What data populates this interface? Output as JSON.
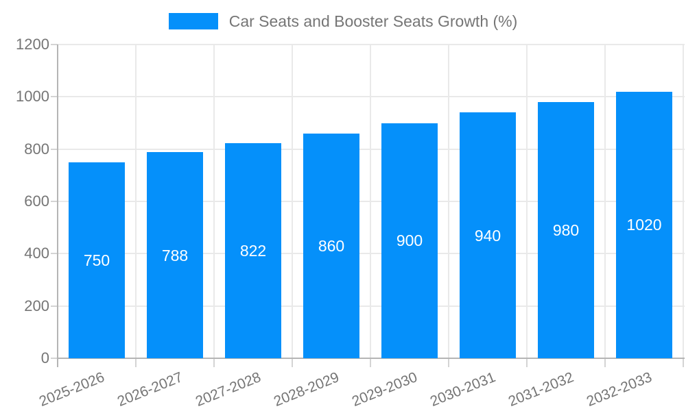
{
  "legend": {
    "label": "Car Seats and Booster Seats Growth (%)"
  },
  "chart_data": {
    "type": "bar",
    "title": "Car Seats and Booster Seats Growth (%)",
    "categories": [
      "2025-2026",
      "2026-2027",
      "2027-2028",
      "2028-2029",
      "2029-2030",
      "2030-2031",
      "2031-2032",
      "2032-2033"
    ],
    "values": [
      750,
      788,
      822,
      860,
      900,
      940,
      980,
      1020
    ],
    "xlabel": "",
    "ylabel": "",
    "ylim": [
      0,
      1200
    ],
    "yticks": [
      0,
      200,
      400,
      600,
      800,
      1000,
      1200
    ],
    "grid": true,
    "legend_position": "top",
    "bar_color": "#0590fa",
    "value_label_color": "#ffffff",
    "axis_text_color": "#757575",
    "gridline_color": "#e9e9e9",
    "axis_line_color": "#b5b5b5"
  }
}
